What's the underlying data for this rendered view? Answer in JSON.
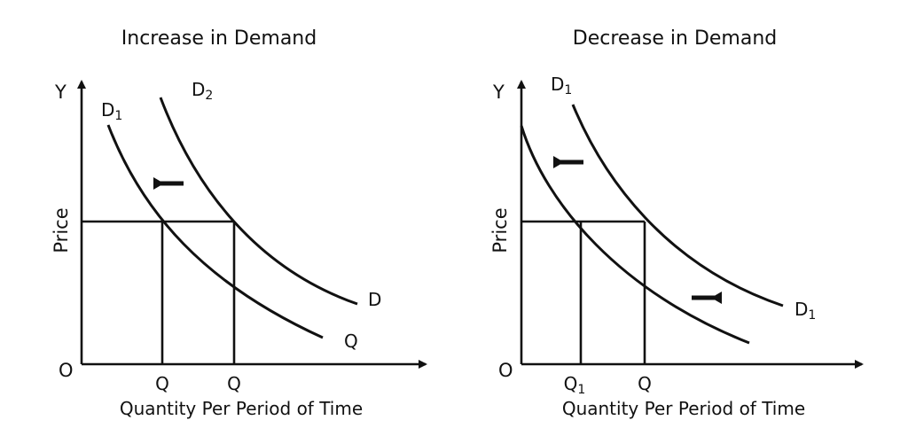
{
  "left": {
    "title": "Increase in Demand",
    "y_axis": "Y",
    "origin": "O",
    "ylabel": "Price",
    "xlabel": "Quantity Per Period of Time",
    "curve_inner_label": {
      "main": "D",
      "sub": "1"
    },
    "curve_outer_label": {
      "main": "D",
      "sub": "2"
    },
    "outer_end_label": "D",
    "inner_end_label": "Q",
    "x_ticks": [
      "Q",
      "Q"
    ],
    "shift_arrow": "left"
  },
  "right": {
    "title": "Decrease in Demand",
    "y_axis": "Y",
    "origin": "O",
    "ylabel": "Price",
    "xlabel": "Quantity Per Period of Time",
    "curve_outer_label": {
      "main": "D",
      "sub": "1"
    },
    "outer_end_label": {
      "main": "D",
      "sub": "1"
    },
    "x_ticks": [
      {
        "main": "Q",
        "sub": "1"
      },
      {
        "main": "Q",
        "sub": ""
      }
    ],
    "shift_arrows": [
      "left",
      "right"
    ]
  }
}
